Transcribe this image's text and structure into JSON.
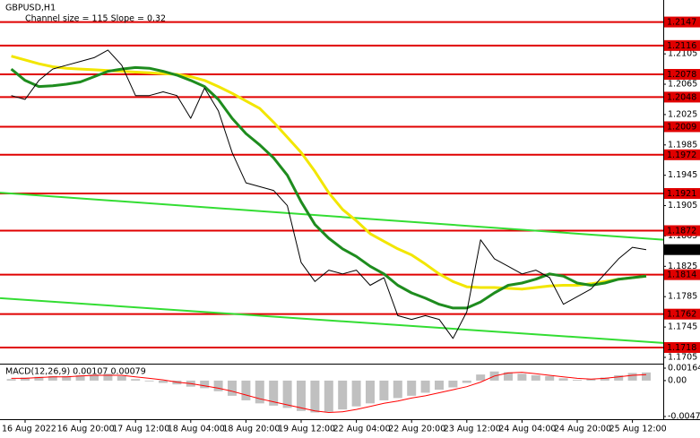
{
  "chart_data": [
    {
      "type": "line",
      "title": "GBPUSD,H1",
      "subtitle": "Channel size = 115 Slope = 0.32",
      "categories": [
        null,
        "16 Aug 2022",
        null,
        null,
        null,
        "16 Aug 20:00",
        null,
        null,
        null,
        "17 Aug 12:00",
        null,
        null,
        null,
        "18 Aug 04:00",
        null,
        null,
        null,
        "18 Aug 20:00",
        null,
        null,
        null,
        "19 Aug 12:00",
        null,
        null,
        null,
        "22 Aug 04:00",
        null,
        null,
        null,
        "22 Aug 20:00",
        null,
        null,
        null,
        "23 Aug 12:00",
        null,
        null,
        null,
        "24 Aug 04:00",
        null,
        null,
        null,
        "24 Aug 20:00",
        null,
        null,
        null,
        "25 Aug 12:00",
        null,
        null
      ],
      "series": [
        {
          "color": "#000000",
          "values": [
            1.205,
            1.2045,
            1.207,
            1.2085,
            1.209,
            1.2095,
            1.21,
            1.211,
            1.209,
            1.205,
            1.205,
            1.2055,
            1.205,
            1.202,
            1.206,
            1.203,
            1.1975,
            1.1935,
            1.193,
            1.1925,
            1.1905,
            1.183,
            1.1805,
            1.182,
            1.1815,
            1.182,
            1.18,
            1.181,
            1.176,
            1.1755,
            1.176,
            1.1755,
            1.173,
            1.1765,
            1.186,
            1.1835,
            1.1825,
            1.1815,
            1.182,
            1.181,
            1.1775,
            1.1785,
            1.1795,
            1.1815,
            1.1835,
            1.185,
            1.1847,
            null
          ]
        },
        {
          "color": "#f2e600",
          "values": [
            1.2102,
            1.2097,
            1.2092,
            1.2088,
            1.2086,
            1.2085,
            1.2084,
            1.2083,
            1.2082,
            1.2081,
            1.208,
            1.2079,
            1.2078,
            1.2075,
            1.207,
            1.2062,
            1.2053,
            1.2043,
            1.2033,
            1.2015,
            1.1995,
            1.1975,
            1.195,
            1.1922,
            1.19,
            1.1885,
            1.1868,
            1.1858,
            1.1848,
            1.184,
            1.1828,
            1.1815,
            1.1805,
            1.1798,
            1.1797,
            1.1797,
            1.1796,
            1.1795,
            1.1797,
            1.1799,
            1.18,
            1.18,
            1.1802,
            1.1805,
            1.1808,
            1.181,
            1.1812,
            null
          ]
        },
        {
          "color": "#1e8c1e",
          "values": [
            1.2085,
            1.207,
            1.2062,
            1.2063,
            1.2065,
            1.2068,
            1.2075,
            1.2082,
            1.2085,
            1.2087,
            1.2086,
            1.2082,
            1.2077,
            1.207,
            1.2062,
            1.2045,
            1.202,
            1.2,
            1.1985,
            1.1968,
            1.1945,
            1.191,
            1.188,
            1.1862,
            1.1848,
            1.1838,
            1.1825,
            1.1815,
            1.18,
            1.179,
            1.1783,
            1.1775,
            1.177,
            1.177,
            1.1778,
            1.179,
            1.18,
            1.1803,
            1.1808,
            1.1815,
            1.1812,
            1.1803,
            1.18,
            1.1803,
            1.1808,
            1.181,
            1.1812,
            null
          ]
        }
      ],
      "ylim": [
        1.16967,
        1.2176
      ],
      "yticks": [
        1.2105,
        1.2065,
        1.2025,
        1.1985,
        1.1945,
        1.1905,
        1.1865,
        1.1825,
        1.1785,
        1.1745,
        1.1705
      ],
      "grid": false,
      "levels": [
        1.2147,
        1.2116,
        1.2078,
        1.2048,
        1.2009,
        1.1972,
        1.1921,
        1.1872,
        1.1814,
        1.1762,
        1.1718
      ],
      "level_color": "#e00000",
      "trend_lines": [
        {
          "color": "#33dd33",
          "values": [
            1.1922,
            1.186
          ]
        },
        {
          "color": "#33dd33",
          "values": [
            1.1783,
            1.1724
          ]
        }
      ],
      "last_price": 1.1847
    },
    {
      "type": "macd",
      "title": "MACD(12,26,9) 0.00107 0.00079",
      "series": [
        {
          "color": "#c0c0c0",
          "values": [
            0.0002,
            0.0004,
            0.0005,
            0.0006,
            0.0006,
            0.0007,
            0.0008,
            0.0009,
            0.0006,
            0.0002,
            -0.0001,
            -0.0003,
            -0.0005,
            -0.0008,
            -0.001,
            -0.0014,
            -0.002,
            -0.0026,
            -0.003,
            -0.0033,
            -0.0036,
            -0.004,
            -0.0042,
            -0.0041,
            -0.0038,
            -0.0034,
            -0.003,
            -0.0026,
            -0.0023,
            -0.002,
            -0.0016,
            -0.0012,
            -0.0009,
            -0.0003,
            0.0008,
            0.0012,
            0.0011,
            0.0009,
            0.0007,
            0.0006,
            0.0003,
            0.0001,
            0.0002,
            0.0004,
            0.0007,
            0.001,
            0.00107,
            null
          ]
        },
        {
          "color": "#ff0000",
          "values": [
            0.0003,
            0.0003,
            0.0004,
            0.0005,
            0.0005,
            0.0006,
            0.0007,
            0.0007,
            0.0007,
            0.0005,
            0.0003,
            0.0001,
            -0.0002,
            -0.0004,
            -0.0007,
            -0.001,
            -0.0014,
            -0.0019,
            -0.0024,
            -0.0028,
            -0.0032,
            -0.0036,
            -0.004,
            -0.0042,
            -0.0041,
            -0.0038,
            -0.0034,
            -0.003,
            -0.0027,
            -0.0023,
            -0.002,
            -0.0016,
            -0.0012,
            -0.0008,
            -0.0002,
            0.0006,
            0.001,
            0.0011,
            0.0009,
            0.0007,
            0.0005,
            0.0003,
            0.0002,
            0.0003,
            0.0005,
            0.0007,
            0.00079,
            null
          ]
        }
      ],
      "ylim": [
        -0.00473,
        0.00164
      ],
      "yticks": [
        0.00164,
        {
          "value": 0,
          "label": "0.00"
        },
        -0.00473
      ]
    }
  ]
}
